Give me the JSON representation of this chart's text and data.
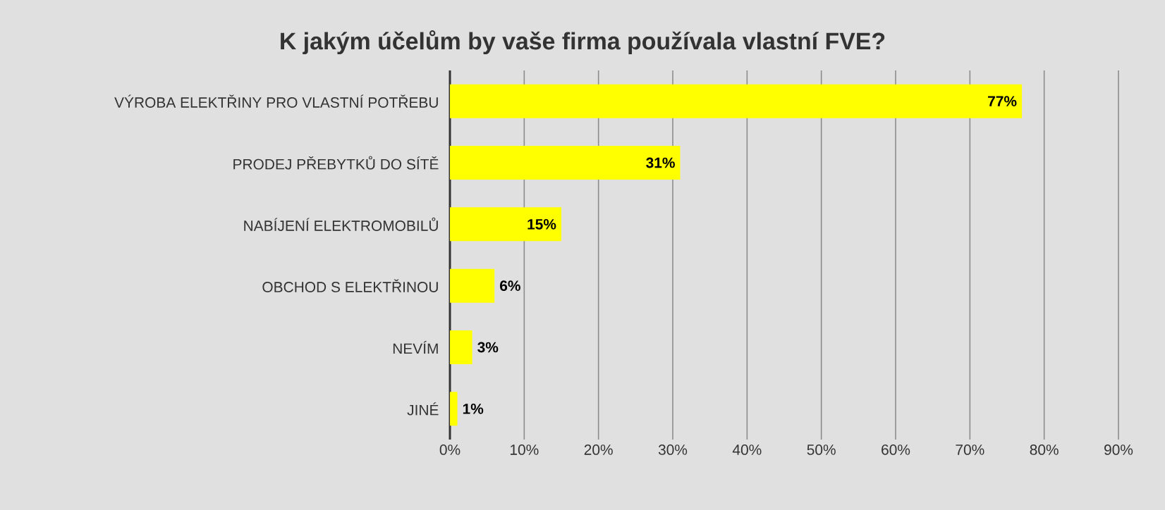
{
  "chart_data": {
    "type": "bar",
    "orientation": "horizontal",
    "title": "K jakým účelům by vaše firma používala vlastní FVE?",
    "categories": [
      "VÝROBA ELEKTŘINY PRO VLASTNÍ POTŘEBU",
      "PRODEJ PŘEBYTKŮ DO SÍTĚ",
      "NABÍJENÍ ELEKTROMOBILŮ",
      "OBCHOD S ELEKTŘINOU",
      "NEVÍM",
      "JINÉ"
    ],
    "values": [
      77,
      31,
      15,
      6,
      3,
      1
    ],
    "value_labels": [
      "77%",
      "31%",
      "15%",
      "6%",
      "3%",
      "1%"
    ],
    "color": "#ffff00",
    "xlim": [
      0,
      90
    ],
    "xticks": [
      {
        "value": 0,
        "label": "0%"
      },
      {
        "value": 10,
        "label": "10%"
      },
      {
        "value": 20,
        "label": "20%"
      },
      {
        "value": 30,
        "label": "30%"
      },
      {
        "value": 40,
        "label": "40%"
      },
      {
        "value": 50,
        "label": "50%"
      },
      {
        "value": 60,
        "label": "60%"
      },
      {
        "value": 70,
        "label": "70%"
      },
      {
        "value": 80,
        "label": "80%"
      },
      {
        "value": 90,
        "label": "90%"
      }
    ],
    "grid": "x"
  }
}
